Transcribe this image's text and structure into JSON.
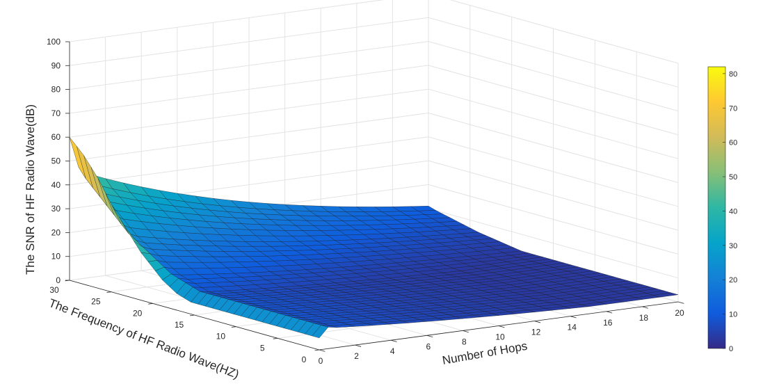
{
  "chart_data": {
    "type": "surface3d",
    "title": "",
    "xlabel": "Number of Hops",
    "ylabel": "The Frequency of HF Radio Wave(HZ)",
    "zlabel": "The SNR of HF Radio Wave(dB)",
    "xlim": [
      0,
      20
    ],
    "ylim": [
      0,
      30
    ],
    "zlim": [
      0,
      100
    ],
    "x_ticks": [
      "0",
      "2",
      "4",
      "6",
      "8",
      "10",
      "12",
      "14",
      "16",
      "18",
      "20"
    ],
    "y_ticks": [
      "0",
      "5",
      "10",
      "15",
      "20",
      "25",
      "30"
    ],
    "z_ticks": [
      "0",
      "10",
      "20",
      "30",
      "40",
      "50",
      "60",
      "70",
      "80",
      "90",
      "100"
    ],
    "grid": true,
    "colormap": "parula",
    "colorbar": {
      "limits": [
        0,
        82
      ],
      "ticks": [
        "0",
        "10",
        "20",
        "30",
        "40",
        "50",
        "60",
        "70",
        "80"
      ],
      "colors": [
        "#352a87",
        "#0f5cdd",
        "#1481d6",
        "#06a4ca",
        "#2eb7a4",
        "#87bf77",
        "#d1bb59",
        "#fec832",
        "#f9fb0e"
      ]
    },
    "surface_rows": [
      {
        "hops": 0,
        "snr": [
          60,
          57,
          54,
          50,
          46,
          41,
          36,
          32,
          28,
          24,
          20,
          17,
          14,
          11,
          9,
          7,
          6,
          5,
          5,
          5,
          5,
          5,
          5,
          5,
          5,
          5,
          5,
          5,
          5,
          5,
          5,
          5,
          5,
          5,
          5,
          5
        ]
      },
      {
        "hops": 0.5,
        "snr": [
          47,
          43,
          40,
          37,
          34,
          31,
          28,
          25,
          23,
          21,
          19,
          17,
          15,
          13,
          12,
          11,
          10,
          9,
          9,
          9,
          9,
          9,
          9,
          9,
          9,
          9,
          9,
          9,
          9,
          9,
          9,
          9,
          9,
          9,
          9,
          9
        ]
      }
    ],
    "surface_y_start": 30,
    "surface_y_end": 0
  }
}
